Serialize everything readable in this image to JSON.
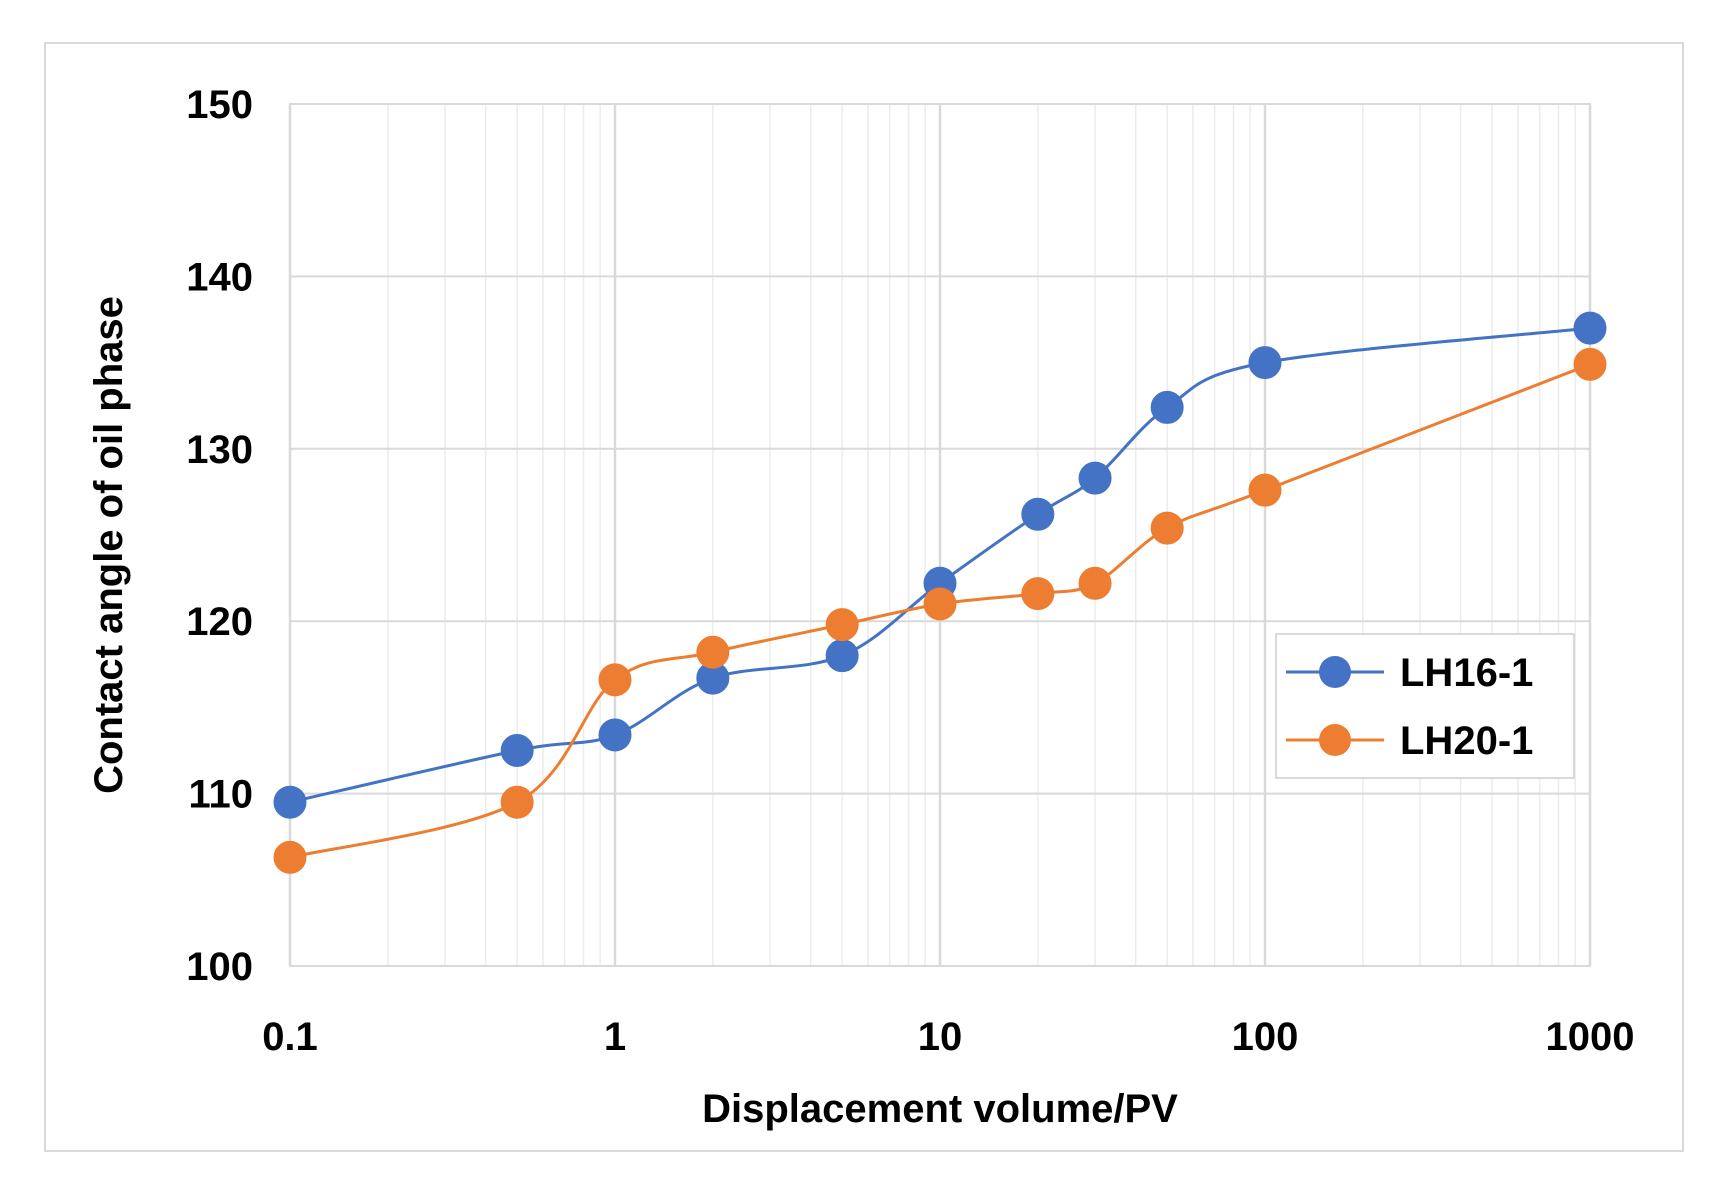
{
  "chart_data": {
    "type": "line",
    "title": "",
    "xlabel": "Displacement volume/PV",
    "ylabel": "Contact angle of oil phase",
    "xscale": "log",
    "xlim": [
      0.1,
      1000
    ],
    "ylim": [
      100,
      150
    ],
    "xticks": [
      0.1,
      1,
      10,
      100,
      1000
    ],
    "xtick_labels": [
      "0.1",
      "1",
      "10",
      "100",
      "1000"
    ],
    "yticks": [
      100,
      110,
      120,
      130,
      140,
      150
    ],
    "ytick_labels": [
      "100",
      "110",
      "120",
      "130",
      "140",
      "150"
    ],
    "grid": true,
    "legend_position": "right",
    "series": [
      {
        "name": "LH16-1",
        "color": "#4472c4",
        "x": [
          0.1,
          0.5,
          1,
          2,
          5,
          10,
          20,
          30,
          50,
          100,
          1000
        ],
        "y": [
          109.5,
          112.5,
          113.4,
          116.7,
          118.0,
          122.2,
          126.2,
          128.3,
          132.4,
          135.0,
          137.0
        ]
      },
      {
        "name": "LH20-1",
        "color": "#ed7d31",
        "x": [
          0.1,
          0.5,
          1,
          2,
          5,
          10,
          20,
          30,
          50,
          100,
          1000
        ],
        "y": [
          106.3,
          109.5,
          116.6,
          118.2,
          119.8,
          121.0,
          121.6,
          122.2,
          125.4,
          127.6,
          134.9
        ]
      }
    ]
  }
}
